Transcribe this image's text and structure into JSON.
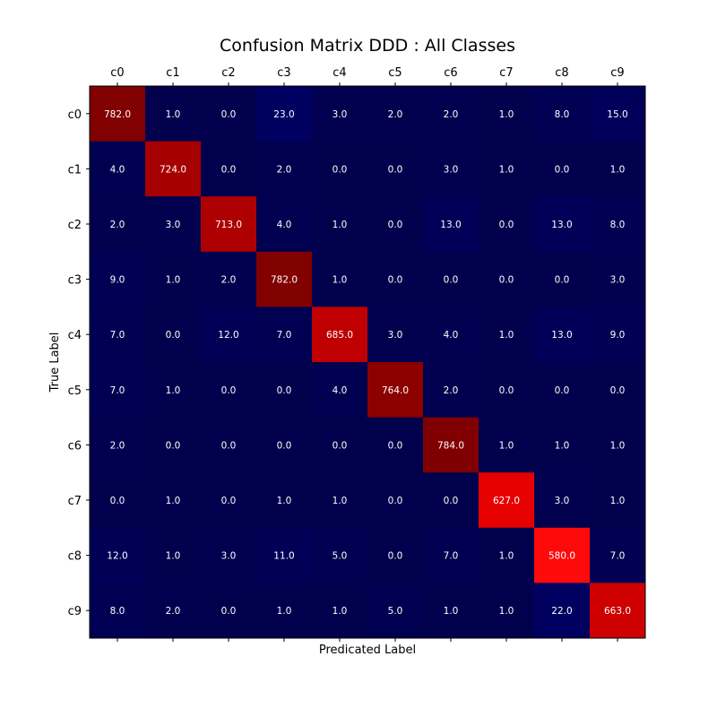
{
  "chart_data": {
    "type": "heatmap",
    "title": "Confusion Matrix DDD : All Classes",
    "xlabel": "Predicated Label",
    "ylabel": "True Label",
    "x_categories": [
      "c0",
      "c1",
      "c2",
      "c3",
      "c4",
      "c5",
      "c6",
      "c7",
      "c8",
      "c9"
    ],
    "y_categories": [
      "c0",
      "c1",
      "c2",
      "c3",
      "c4",
      "c5",
      "c6",
      "c7",
      "c8",
      "c9"
    ],
    "x_tick_position": "top",
    "colormap": "seismic",
    "color_range": [
      0,
      784
    ],
    "values": [
      [
        "782.0",
        "1.0",
        "0.0",
        "23.0",
        "3.0",
        "2.0",
        "2.0",
        "1.0",
        "8.0",
        "15.0"
      ],
      [
        "4.0",
        "724.0",
        "0.0",
        "2.0",
        "0.0",
        "0.0",
        "3.0",
        "1.0",
        "0.0",
        "1.0"
      ],
      [
        "2.0",
        "3.0",
        "713.0",
        "4.0",
        "1.0",
        "0.0",
        "13.0",
        "0.0",
        "13.0",
        "8.0"
      ],
      [
        "9.0",
        "1.0",
        "2.0",
        "782.0",
        "1.0",
        "0.0",
        "0.0",
        "0.0",
        "0.0",
        "3.0"
      ],
      [
        "7.0",
        "0.0",
        "12.0",
        "7.0",
        "685.0",
        "3.0",
        "4.0",
        "1.0",
        "13.0",
        "9.0"
      ],
      [
        "7.0",
        "1.0",
        "0.0",
        "0.0",
        "4.0",
        "764.0",
        "2.0",
        "0.0",
        "0.0",
        "0.0"
      ],
      [
        "2.0",
        "0.0",
        "0.0",
        "0.0",
        "0.0",
        "0.0",
        "784.0",
        "1.0",
        "1.0",
        "1.0"
      ],
      [
        "0.0",
        "1.0",
        "0.0",
        "1.0",
        "1.0",
        "0.0",
        "0.0",
        "627.0",
        "3.0",
        "1.0"
      ],
      [
        "12.0",
        "1.0",
        "3.0",
        "11.0",
        "5.0",
        "0.0",
        "7.0",
        "1.0",
        "580.0",
        "7.0"
      ],
      [
        "8.0",
        "2.0",
        "0.0",
        "1.0",
        "1.0",
        "5.0",
        "1.0",
        "1.0",
        "22.0",
        "663.0"
      ]
    ]
  }
}
